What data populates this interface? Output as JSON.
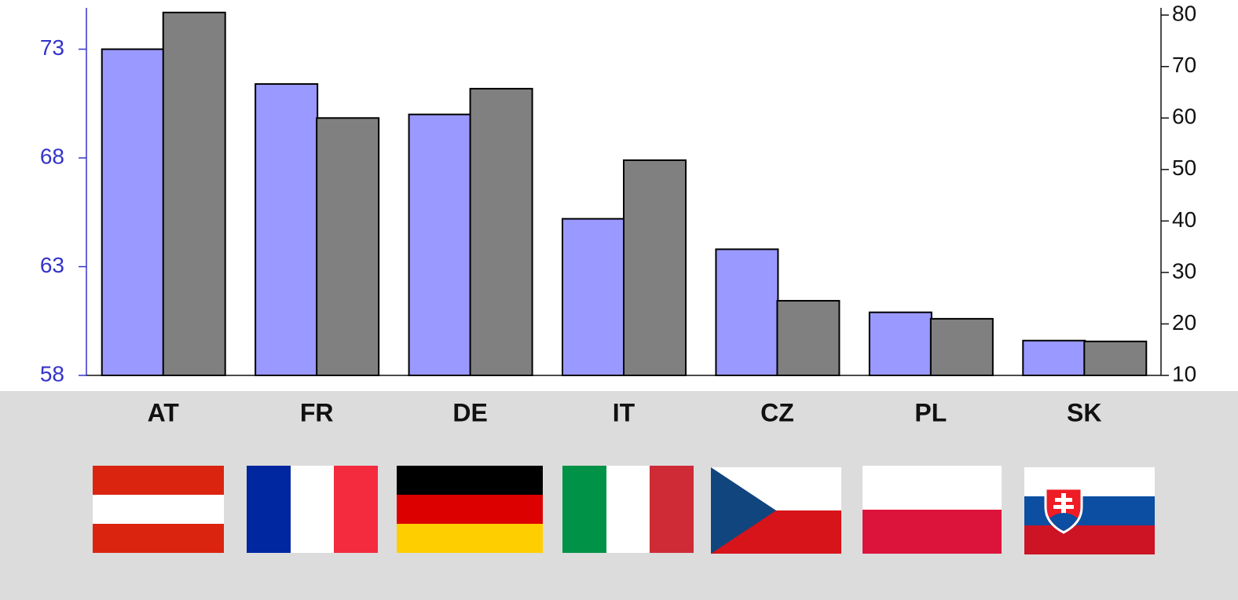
{
  "chart_data": {
    "type": "bar",
    "categories": [
      "AT",
      "FR",
      "DE",
      "IT",
      "CZ",
      "PL",
      "SK"
    ],
    "series": [
      {
        "color": "#9999ff",
        "axis": "y",
        "values": [
          73.0,
          71.4,
          70.0,
          65.2,
          63.8,
          60.9,
          59.6
        ]
      },
      {
        "color": "#808080",
        "axis": "y2",
        "values": [
          80.5,
          60.0,
          65.7,
          51.8,
          24.5,
          21.0,
          16.6
        ]
      }
    ],
    "ylim": [
      58,
      74.9
    ],
    "yticks": [
      58,
      63,
      68,
      73
    ],
    "y2lim": [
      10,
      81.4
    ],
    "y2ticks": [
      10,
      20,
      30,
      40,
      50,
      60,
      70,
      80
    ]
  }
}
